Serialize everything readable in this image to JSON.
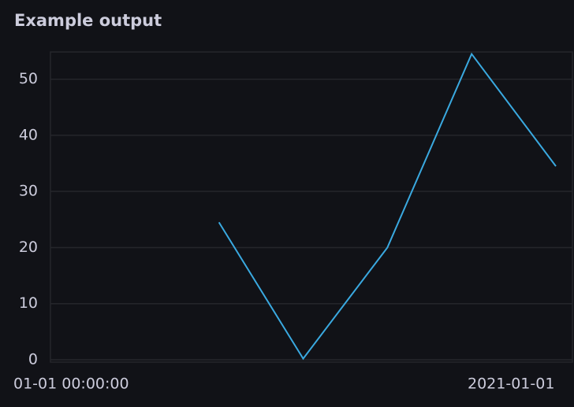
{
  "chart_data": {
    "type": "line",
    "title": "Example output",
    "categories": [
      "01-01 00:00:00",
      null,
      null,
      null,
      null,
      null,
      "2021-01-01"
    ],
    "series": [
      {
        "color": "#3aa9e0",
        "values": [
          null,
          null,
          24.5,
          0.2,
          20,
          54.5,
          34.5
        ]
      }
    ],
    "ylim": [
      0,
      55
    ],
    "yticks": [
      0,
      10,
      20,
      30,
      40,
      50
    ],
    "grid": true
  }
}
